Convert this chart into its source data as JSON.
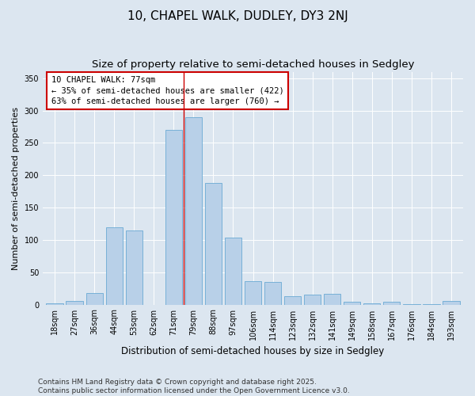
{
  "title_line1": "10, CHAPEL WALK, DUDLEY, DY3 2NJ",
  "title_line2": "Size of property relative to semi-detached houses in Sedgley",
  "xlabel": "Distribution of semi-detached houses by size in Sedgley",
  "ylabel": "Number of semi-detached properties",
  "categories": [
    "18sqm",
    "27sqm",
    "36sqm",
    "44sqm",
    "53sqm",
    "62sqm",
    "71sqm",
    "79sqm",
    "88sqm",
    "97sqm",
    "106sqm",
    "114sqm",
    "123sqm",
    "132sqm",
    "141sqm",
    "149sqm",
    "158sqm",
    "167sqm",
    "176sqm",
    "184sqm",
    "193sqm"
  ],
  "values": [
    2,
    6,
    18,
    120,
    115,
    0,
    270,
    290,
    188,
    104,
    36,
    35,
    13,
    15,
    17,
    4,
    2,
    4,
    1,
    1,
    5
  ],
  "bar_color": "#b8d0e8",
  "bar_edge_color": "#6aaad4",
  "annotation_text": "10 CHAPEL WALK: 77sqm\n← 35% of semi-detached houses are smaller (422)\n63% of semi-detached houses are larger (760) →",
  "annotation_box_facecolor": "#ffffff",
  "annotation_box_edgecolor": "#cc0000",
  "ref_line_index": 6.5,
  "ylim": [
    0,
    360
  ],
  "yticks": [
    0,
    50,
    100,
    150,
    200,
    250,
    300,
    350
  ],
  "background_color": "#dce6f0",
  "plot_background_color": "#dce6f0",
  "grid_color": "#ffffff",
  "footer_text": "Contains HM Land Registry data © Crown copyright and database right 2025.\nContains public sector information licensed under the Open Government Licence v3.0.",
  "title_fontsize": 11,
  "subtitle_fontsize": 9.5,
  "axis_label_fontsize": 8,
  "tick_fontsize": 7,
  "annotation_fontsize": 7.5,
  "footer_fontsize": 6.5
}
